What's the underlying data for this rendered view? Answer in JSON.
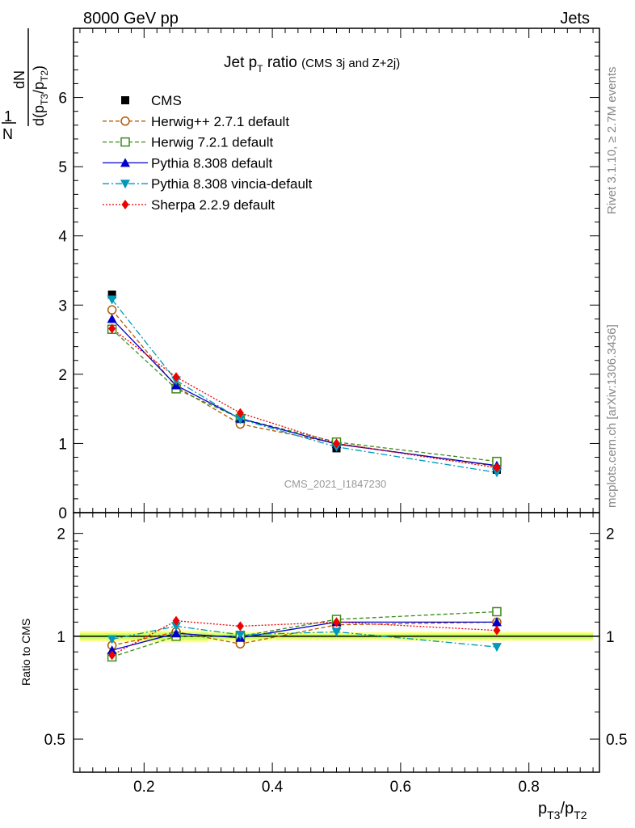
{
  "header": {
    "left": "8000 GeV pp",
    "right": "Jets"
  },
  "side_labels": {
    "rivet": "Rivet 3.1.10, ≥ 2.7M events",
    "mcplots": "mcplots.cern.ch [arXiv:1306.3436]"
  },
  "chart_data": [
    {
      "type": "line",
      "panel": "main",
      "title": {
        "main": "Jet p",
        "sub": "T",
        "rest": " ratio ",
        "small": "(CMS 3j and Z+2j)"
      },
      "ylabel": {
        "one": "1",
        "n": "N",
        "dn": "dN",
        "d": "d(p",
        "t3": "T3",
        "slash": "/p",
        "t2": "T2",
        "close": ")"
      },
      "watermark": "CMS_2021_I1847230",
      "xlim": [
        0.09,
        0.91
      ],
      "ylim": [
        0,
        7
      ],
      "yticks": [
        0,
        1,
        2,
        3,
        4,
        5,
        6
      ],
      "ytick_labels": [
        "0",
        "1",
        "2",
        "3",
        "4",
        "5",
        "6"
      ],
      "legend_position": "top-left",
      "x": [
        0.15,
        0.25,
        0.35,
        0.5,
        0.75
      ],
      "series": [
        {
          "name": "CMS",
          "color": "#000000",
          "marker": "square-filled",
          "line": "none",
          "values": [
            3.15,
            1.8,
            1.35,
            0.93,
            0.62
          ]
        },
        {
          "name": "Herwig++ 2.7.1 default",
          "color": "#b35900",
          "marker": "circle-open",
          "line": "dashed",
          "values": [
            2.93,
            1.82,
            1.28,
            1.0,
            0.67
          ]
        },
        {
          "name": "Herwig 7.2.1 default",
          "color": "#3d8a1a",
          "marker": "square-open",
          "line": "dashed",
          "values": [
            2.65,
            1.79,
            1.36,
            1.02,
            0.74
          ]
        },
        {
          "name": "Pythia 8.308 default",
          "color": "#0000cc",
          "marker": "triangle-up",
          "line": "solid",
          "values": [
            2.8,
            1.84,
            1.36,
            0.99,
            0.68
          ]
        },
        {
          "name": "Pythia 8.308 vincia-default",
          "color": "#0099bb",
          "marker": "triangle-down",
          "line": "dashdot",
          "values": [
            3.08,
            1.91,
            1.35,
            0.95,
            0.58
          ]
        },
        {
          "name": "Sherpa 2.2.9 default",
          "color": "#ee0000",
          "marker": "diamond",
          "line": "dotted",
          "values": [
            2.66,
            1.96,
            1.44,
            1.0,
            0.65
          ]
        }
      ]
    },
    {
      "type": "line",
      "panel": "ratio",
      "ylabel": "Ratio to CMS",
      "xlabel": {
        "p": "p",
        "t3": "T3",
        "slash": "/p",
        "t2": "T2"
      },
      "xlim": [
        0.09,
        0.91
      ],
      "ylim": [
        0.4,
        2.3
      ],
      "ylog": true,
      "xticks": [
        0.2,
        0.4,
        0.6,
        0.8
      ],
      "xtick_labels": [
        "0.2",
        "0.4",
        "0.6",
        "0.8"
      ],
      "yticks": [
        0.5,
        1,
        2
      ],
      "ytick_labels": [
        "0.5",
        "1",
        "2"
      ],
      "band_colors": {
        "inner": "#ccff66",
        "outer": "#ffff88"
      },
      "x": [
        0.15,
        0.25,
        0.35,
        0.5,
        0.75
      ],
      "series": [
        {
          "name": "Herwig++ 2.7.1 default",
          "color": "#b35900",
          "marker": "circle-open",
          "line": "dashed",
          "values": [
            0.94,
            1.03,
            0.95,
            1.08,
            1.1
          ]
        },
        {
          "name": "Herwig 7.2.1 default",
          "color": "#3d8a1a",
          "marker": "square-open",
          "line": "dashed",
          "values": [
            0.87,
            1.0,
            1.0,
            1.12,
            1.18
          ]
        },
        {
          "name": "Pythia 8.308 default",
          "color": "#0000cc",
          "marker": "triangle-up",
          "line": "solid",
          "values": [
            0.91,
            1.02,
            0.99,
            1.1,
            1.1
          ]
        },
        {
          "name": "Pythia 8.308 vincia-default",
          "color": "#0099bb",
          "marker": "triangle-down",
          "line": "dashdot",
          "values": [
            0.98,
            1.07,
            1.01,
            1.03,
            0.93
          ]
        },
        {
          "name": "Sherpa 2.2.9 default",
          "color": "#ee0000",
          "marker": "diamond",
          "line": "dotted",
          "values": [
            0.88,
            1.11,
            1.07,
            1.1,
            1.04
          ]
        }
      ]
    }
  ]
}
